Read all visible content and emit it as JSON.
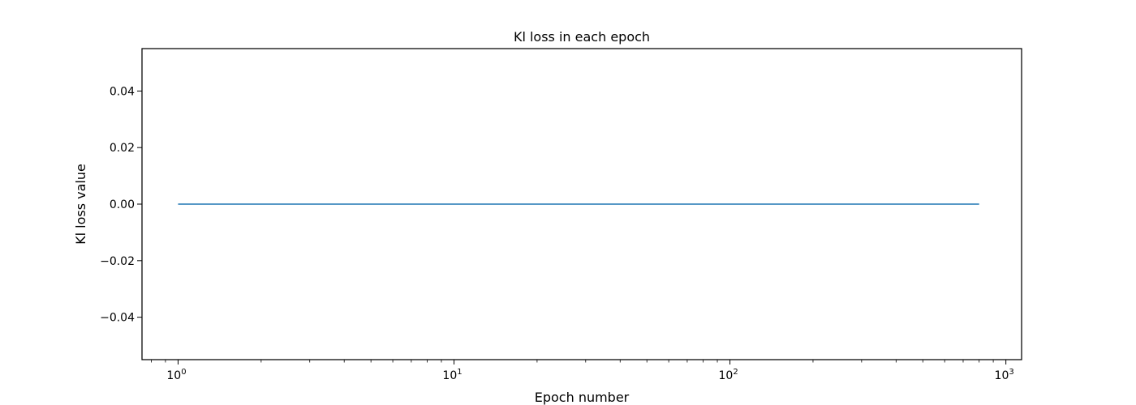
{
  "chart_data": {
    "type": "line",
    "title": "Kl loss in each epoch",
    "xlabel": "Epoch number",
    "ylabel": "Kl loss value",
    "xscale": "log",
    "xlim": [
      0.74,
      1140
    ],
    "ylim": [
      -0.055,
      0.055
    ],
    "grid": false,
    "legend": "none",
    "x_ticks": [
      {
        "base": "10",
        "exp": "0",
        "value": 1
      },
      {
        "base": "10",
        "exp": "1",
        "value": 10
      },
      {
        "base": "10",
        "exp": "2",
        "value": 100
      },
      {
        "base": "10",
        "exp": "3",
        "value": 1000
      }
    ],
    "y_ticks": [
      {
        "label": "0.04",
        "value": 0.04
      },
      {
        "label": "0.02",
        "value": 0.02
      },
      {
        "label": "0.00",
        "value": 0.0
      },
      {
        "label": "−0.02",
        "value": -0.02
      },
      {
        "label": "−0.04",
        "value": -0.04
      }
    ],
    "series": [
      {
        "color": "#1f77b4",
        "x": [
          1,
          800
        ],
        "y": [
          0.0,
          0.0
        ]
      }
    ]
  }
}
